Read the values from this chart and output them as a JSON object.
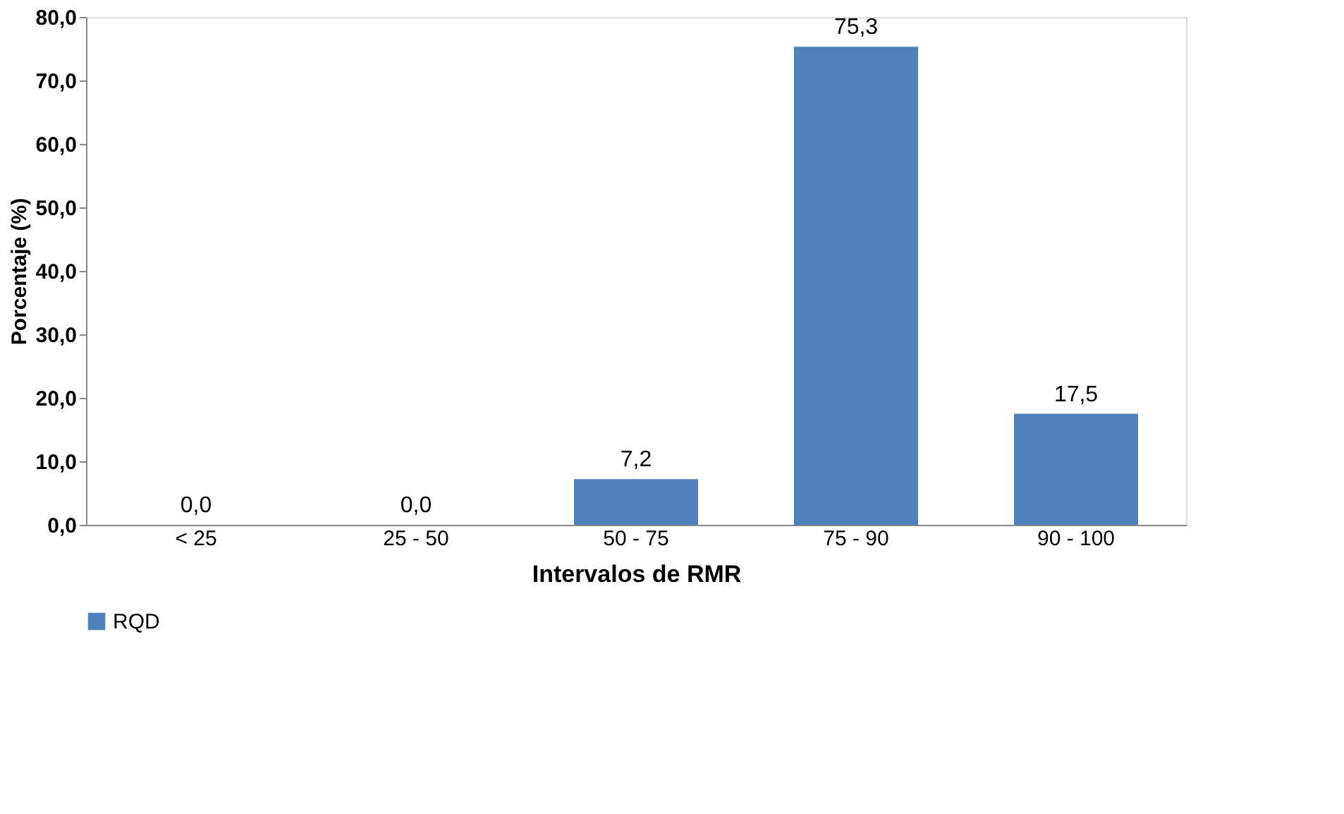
{
  "chart_data": {
    "type": "bar",
    "xlabel": "Intervalos  de RMR",
    "ylabel": "Porcentaje (%)",
    "categories": [
      "< 25",
      "25 - 50",
      "50 - 75",
      "75 - 90",
      "90 - 100"
    ],
    "series": [
      {
        "name": "RQD",
        "color": "#4f81bd",
        "values": [
          0.0,
          0.0,
          7.2,
          75.3,
          17.5
        ],
        "value_labels": [
          "0,0",
          "0,0",
          "7,2",
          "75,3",
          "17,5"
        ]
      }
    ],
    "ylim": [
      0,
      80
    ],
    "yticks": [
      {
        "value": 0,
        "label": "0,0"
      },
      {
        "value": 10,
        "label": "10,0"
      },
      {
        "value": 20,
        "label": "20,0"
      },
      {
        "value": 30,
        "label": "30,0"
      },
      {
        "value": 40,
        "label": "40,0"
      },
      {
        "value": 50,
        "label": "50,0"
      },
      {
        "value": 60,
        "label": "60,0"
      },
      {
        "value": 70,
        "label": "70,0"
      },
      {
        "value": 80,
        "label": "80,0"
      }
    ],
    "grid": false,
    "legend": "bottom"
  }
}
